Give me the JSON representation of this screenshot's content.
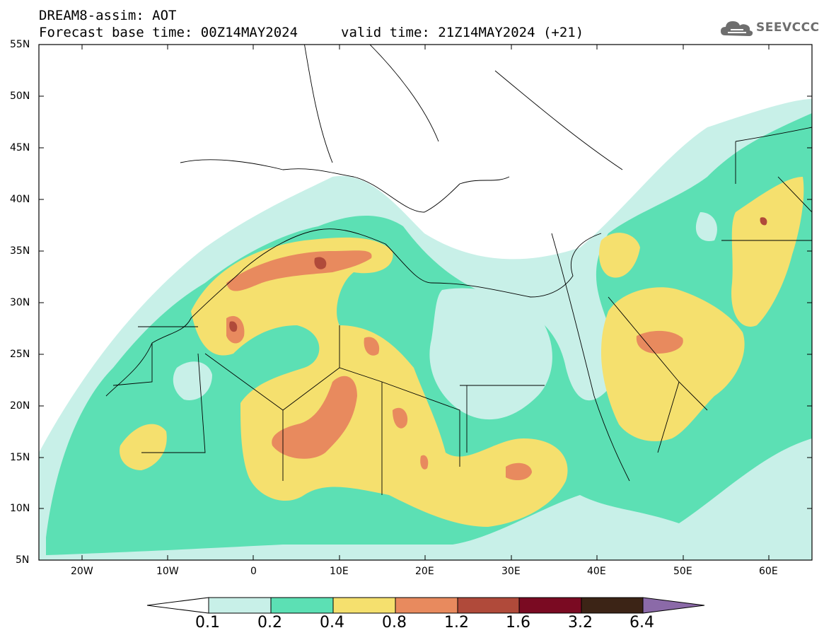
{
  "header": {
    "title": "DREAM8-assim: AOT",
    "base_time": "Forecast base time: 00Z14MAY2024",
    "valid_time": "valid time: 21Z14MAY2024 (+21)",
    "logo_text": "SEEVCCC"
  },
  "map": {
    "lat_labels": [
      "55N",
      "50N",
      "45N",
      "40N",
      "35N",
      "30N",
      "25N",
      "20N",
      "15N",
      "10N",
      "5N"
    ],
    "lon_labels": [
      "20W",
      "10W",
      "0",
      "10E",
      "20E",
      "30E",
      "40E",
      "50E",
      "60E"
    ]
  },
  "colorbar": {
    "levels": [
      "0.1",
      "0.2",
      "0.4",
      "0.8",
      "1.2",
      "1.6",
      "3.2",
      "6.4"
    ],
    "colors": [
      "#ffffff",
      "#c8f0e8",
      "#5ce0b4",
      "#f5e06e",
      "#e88a5e",
      "#b04a3a",
      "#7a0a22",
      "#3c2416",
      "#8b6aa8"
    ]
  }
}
